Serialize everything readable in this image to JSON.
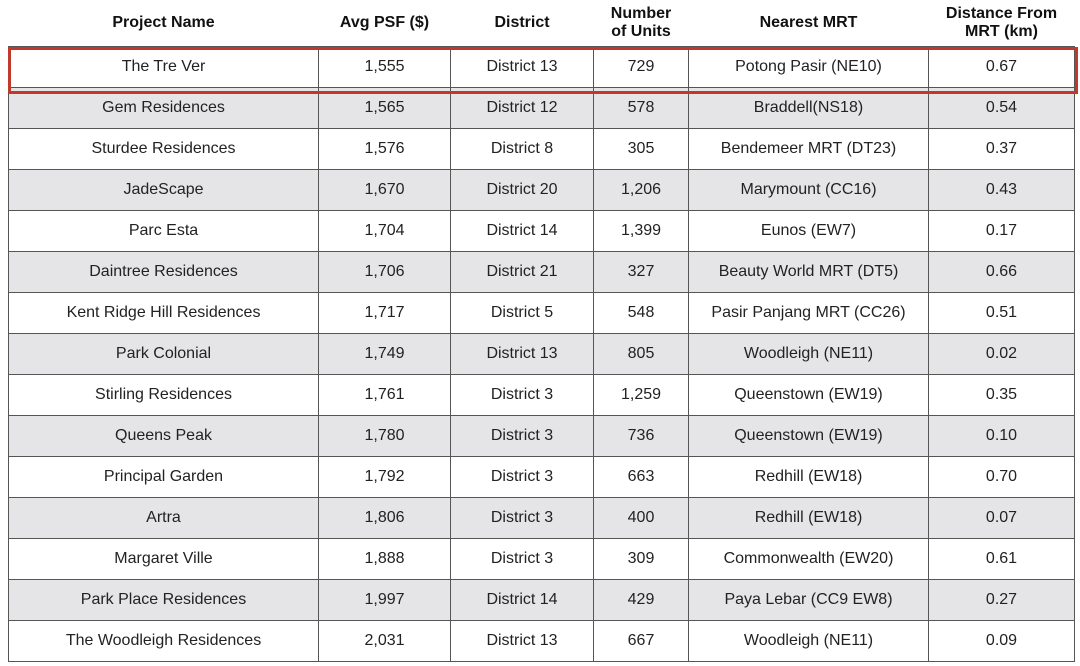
{
  "table": {
    "header": [
      "Project Name",
      "Avg PSF ($)",
      "District",
      "Number\nof Units",
      "Nearest MRT",
      "Distance From\nMRT (km)"
    ],
    "rows": [
      [
        "The Tre Ver",
        "1,555",
        "District 13",
        "729",
        "Potong Pasir (NE10)",
        "0.67"
      ],
      [
        "Gem Residences",
        "1,565",
        "District 12",
        "578",
        "Braddell(NS18)",
        "0.54"
      ],
      [
        "Sturdee Residences",
        "1,576",
        "District 8",
        "305",
        "Bendemeer MRT (DT23)",
        "0.37"
      ],
      [
        "JadeScape",
        "1,670",
        "District 20",
        "1,206",
        "Marymount (CC16)",
        "0.43"
      ],
      [
        "Parc Esta",
        "1,704",
        "District 14",
        "1,399",
        "Eunos (EW7)",
        "0.17"
      ],
      [
        "Daintree Residences",
        "1,706",
        "District 21",
        "327",
        "Beauty World MRT (DT5)",
        "0.66"
      ],
      [
        "Kent Ridge Hill Residences",
        "1,717",
        "District 5",
        "548",
        "Pasir Panjang MRT (CC26)",
        "0.51"
      ],
      [
        "Park Colonial",
        "1,749",
        "District 13",
        "805",
        "Woodleigh (NE11)",
        "0.02"
      ],
      [
        "Stirling Residences",
        "1,761",
        "District 3",
        "1,259",
        "Queenstown (EW19)",
        "0.35"
      ],
      [
        "Queens Peak",
        "1,780",
        "District 3",
        "736",
        "Queenstown (EW19)",
        "0.10"
      ],
      [
        "Principal Garden",
        "1,792",
        "District 3",
        "663",
        "Redhill (EW18)",
        "0.70"
      ],
      [
        "Artra",
        "1,806",
        "District 3",
        "400",
        "Redhill (EW18)",
        "0.07"
      ],
      [
        "Margaret Ville",
        "1,888",
        "District 3",
        "309",
        "Commonwealth (EW20)",
        "0.61"
      ],
      [
        "Park Place Residences",
        "1,997",
        "District 14",
        "429",
        "Paya Lebar (CC9 EW8)",
        "0.27"
      ],
      [
        "The Woodleigh Residences",
        "2,031",
        "District 13",
        "667",
        "Woodleigh (NE11)",
        "0.09"
      ]
    ]
  }
}
